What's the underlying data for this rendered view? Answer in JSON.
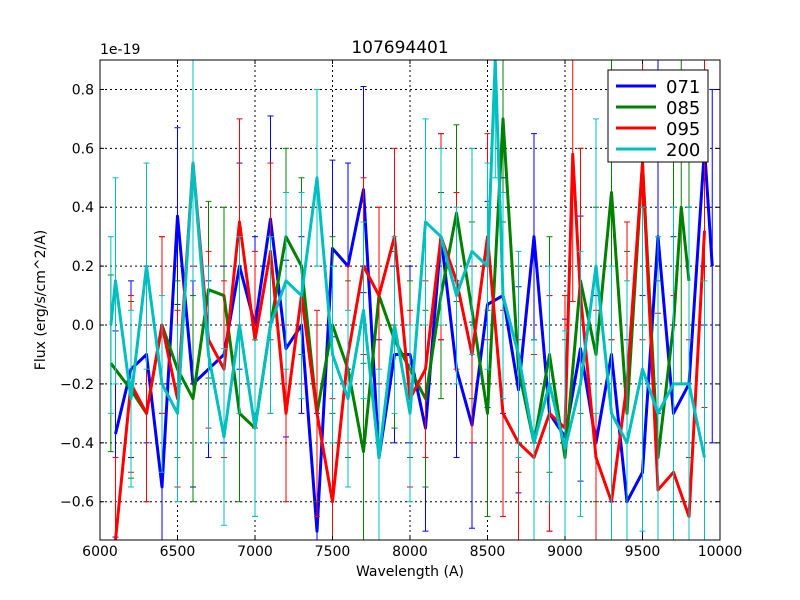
{
  "chart_data": {
    "type": "line",
    "title": "107694401",
    "xlabel": "Wavelength (A)",
    "ylabel": "Flux (erg/s/cm^2/A)",
    "y_offset_label": "1e-19",
    "xlim": [
      6000,
      10000
    ],
    "ylim": [
      -0.73,
      0.9
    ],
    "xticks": [
      6000,
      6500,
      7000,
      7500,
      8000,
      8500,
      9000,
      9500,
      10000
    ],
    "xtick_labels": [
      "6000",
      "6500",
      "7000",
      "7500",
      "8000",
      "8500",
      "9000",
      "9500",
      "10000"
    ],
    "yticks": [
      -0.6,
      -0.4,
      -0.2,
      0.0,
      0.2,
      0.4,
      0.6,
      0.8
    ],
    "ytick_labels": [
      "−0.6",
      "−0.4",
      "−0.2",
      "0.0",
      "0.2",
      "0.4",
      "0.6",
      "0.8"
    ],
    "grid": true,
    "legend_position": "top-right",
    "series": [
      {
        "name": "071",
        "color": "#0000ff",
        "x": [
          6100,
          6200,
          6300,
          6400,
          6500,
          6600,
          6700,
          6800,
          6900,
          7000,
          7100,
          7200,
          7300,
          7400,
          7500,
          7600,
          7700,
          7800,
          7900,
          8000,
          8100,
          8200,
          8300,
          8400,
          8500,
          8600,
          8700,
          8800,
          8900,
          9000,
          9100,
          9200,
          9300,
          9400,
          9500,
          9600,
          9700,
          9800,
          9900,
          9950
        ],
        "y": [
          -0.37,
          -0.15,
          -0.1,
          -0.55,
          0.37,
          -0.2,
          -0.15,
          -0.1,
          0.2,
          0.0,
          0.36,
          -0.08,
          0.0,
          -0.7,
          0.26,
          0.2,
          0.46,
          -0.45,
          -0.1,
          -0.1,
          -0.35,
          0.3,
          -0.15,
          -0.34,
          0.07,
          0.1,
          -0.22,
          0.3,
          -0.3,
          -0.38,
          -0.08,
          -0.4,
          -0.1,
          -0.6,
          -0.5,
          0.3,
          -0.3,
          -0.2,
          0.6,
          0.2
        ],
        "yerr": [
          0.35,
          0.3,
          0.3,
          0.35,
          0.3,
          0.35,
          0.3,
          0.3,
          0.35,
          0.3,
          0.35,
          0.3,
          0.3,
          0.4,
          0.3,
          0.35,
          0.35,
          0.4,
          0.3,
          0.3,
          0.35,
          0.35,
          0.3,
          0.35,
          0.35,
          0.4,
          0.35,
          0.35,
          0.4,
          0.4,
          0.45,
          0.5,
          0.5,
          0.55,
          0.6,
          0.6,
          0.6,
          0.6,
          0.6,
          0.6
        ]
      },
      {
        "name": "085",
        "color": "#008000",
        "x": [
          6070,
          6200,
          6300,
          6400,
          6500,
          6600,
          6700,
          6800,
          6900,
          7000,
          7100,
          7200,
          7300,
          7400,
          7500,
          7600,
          7700,
          7800,
          7900,
          8000,
          8100,
          8200,
          8300,
          8400,
          8500,
          8600,
          8700,
          8800,
          8900,
          9000,
          9100,
          9200,
          9300,
          9400,
          9500,
          9600,
          9700,
          9750,
          9800
        ],
        "y": [
          -0.13,
          -0.22,
          -0.3,
          0.0,
          -0.15,
          -0.25,
          0.12,
          0.1,
          -0.3,
          -0.35,
          0.0,
          0.3,
          0.2,
          -0.3,
          0.0,
          -0.15,
          -0.43,
          0.1,
          -0.05,
          -0.15,
          -0.25,
          0.1,
          0.38,
          0.05,
          -0.3,
          0.7,
          -0.15,
          -0.4,
          -0.1,
          -0.45,
          0.15,
          -0.1,
          0.45,
          -0.3,
          0.55,
          -0.45,
          0.0,
          0.4,
          0.15
        ],
        "yerr": [
          0.3,
          0.3,
          0.3,
          0.3,
          0.3,
          0.35,
          0.3,
          0.3,
          0.3,
          0.3,
          0.3,
          0.3,
          0.3,
          0.3,
          0.3,
          0.3,
          0.3,
          0.3,
          0.3,
          0.3,
          0.3,
          0.35,
          0.3,
          0.3,
          0.35,
          0.35,
          0.35,
          0.35,
          0.4,
          0.4,
          0.45,
          0.5,
          0.5,
          0.55,
          0.55,
          0.6,
          0.6,
          0.6,
          0.6
        ]
      },
      {
        "name": "095",
        "color": "#ff0000",
        "x": [
          6100,
          6200,
          6300,
          6400,
          6500,
          6600,
          6700,
          6800,
          6900,
          7000,
          7100,
          7200,
          7300,
          7400,
          7500,
          7600,
          7700,
          7800,
          7900,
          8000,
          8100,
          8200,
          8300,
          8400,
          8500,
          8600,
          8700,
          8800,
          8900,
          9000,
          9050,
          9100,
          9200,
          9300,
          9400,
          9500,
          9600,
          9700,
          9800,
          9900
        ],
        "y": [
          -0.75,
          -0.2,
          -0.3,
          0.0,
          -0.25,
          0.55,
          -0.05,
          -0.15,
          0.35,
          -0.05,
          0.25,
          -0.3,
          0.1,
          -0.3,
          -0.6,
          -0.1,
          0.2,
          0.1,
          0.3,
          -0.25,
          -0.15,
          0.3,
          0.15,
          -0.1,
          0.3,
          -0.3,
          -0.4,
          -0.45,
          -0.3,
          -0.35,
          0.58,
          0.1,
          -0.45,
          -0.6,
          -0.2,
          0.55,
          -0.56,
          -0.5,
          -0.65,
          0.32
        ],
        "yerr": [
          0.3,
          0.3,
          0.3,
          0.3,
          0.3,
          0.35,
          0.3,
          0.3,
          0.35,
          0.3,
          0.3,
          0.3,
          0.3,
          0.35,
          0.35,
          0.3,
          0.3,
          0.3,
          0.3,
          0.3,
          0.3,
          0.35,
          0.3,
          0.3,
          0.35,
          0.35,
          0.35,
          0.35,
          0.4,
          0.45,
          0.5,
          0.5,
          0.5,
          0.55,
          0.55,
          0.6,
          0.6,
          0.6,
          0.6,
          0.6
        ]
      },
      {
        "name": "200",
        "color": "#00bfbf",
        "x": [
          6070,
          6100,
          6200,
          6300,
          6400,
          6500,
          6600,
          6700,
          6800,
          6900,
          7000,
          7100,
          7200,
          7300,
          7400,
          7500,
          7600,
          7700,
          7800,
          7900,
          8000,
          8100,
          8200,
          8300,
          8400,
          8500,
          8550,
          8600,
          8700,
          8800,
          8900,
          9000,
          9100,
          9200,
          9300,
          9400,
          9500,
          9600,
          9700,
          9800,
          9900
        ],
        "y": [
          0.0,
          0.15,
          -0.25,
          0.2,
          -0.2,
          -0.3,
          0.55,
          -0.1,
          -0.38,
          0.0,
          -0.35,
          0.0,
          0.15,
          0.1,
          0.5,
          -0.1,
          -0.25,
          0.05,
          -0.45,
          0.0,
          -0.3,
          0.35,
          0.3,
          0.1,
          0.25,
          0.2,
          0.9,
          0.1,
          -0.1,
          -0.4,
          -0.2,
          -0.42,
          -0.2,
          0.2,
          -0.3,
          -0.4,
          -0.15,
          -0.3,
          -0.2,
          -0.2,
          -0.45
        ],
        "yerr": [
          0.3,
          0.35,
          0.3,
          0.35,
          0.3,
          0.3,
          0.4,
          0.3,
          0.3,
          0.3,
          0.3,
          0.3,
          0.3,
          0.35,
          0.3,
          0.3,
          0.3,
          0.3,
          0.3,
          0.3,
          0.3,
          0.35,
          0.3,
          0.3,
          0.35,
          0.35,
          0.4,
          0.35,
          0.35,
          0.35,
          0.4,
          0.4,
          0.45,
          0.5,
          0.5,
          0.55,
          0.55,
          0.6,
          0.6,
          0.6,
          0.6
        ]
      }
    ]
  }
}
